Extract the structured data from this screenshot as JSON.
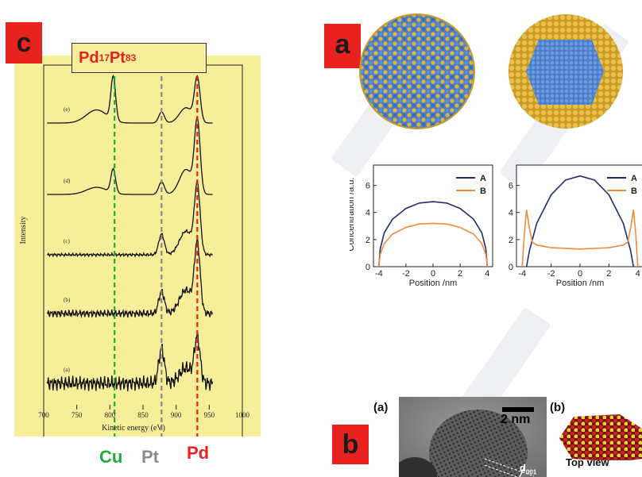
{
  "panel_c": {
    "tag": "c",
    "title": {
      "base1": "Pd",
      "sub1": "17",
      "base2": "Pt",
      "sub2": "83"
    },
    "y_label": "Intensity",
    "x_label": "Kinetic energy (eV)",
    "x_ticks": [
      "700",
      "750",
      "800",
      "850",
      "900",
      "950",
      "1000"
    ],
    "trace_labels": [
      "(e)",
      "(d)",
      "(c)",
      "(b)",
      "(a)"
    ],
    "element_labels": [
      {
        "text": "Cu",
        "color": "#1faa3a"
      },
      {
        "text": "Pt",
        "color": "#8a8a8a"
      },
      {
        "text": "Pd",
        "color": "#e8231f"
      }
    ],
    "line_colors": {
      "cu": "#1faa3a",
      "pt": "#8a8a8a",
      "pd": "#e8231f"
    },
    "background_color": "#f7ee9a"
  },
  "panel_a": {
    "tag": "a",
    "colors": {
      "A": "#1f2d6b",
      "B": "#f08a3c",
      "blue_atoms": "#4c7fc9",
      "gold_atoms": "#e0b23a"
    }
  },
  "panel_b": {
    "tag": "b",
    "sublabel_a": "(a)",
    "sublabel_b": "(b)",
    "scale_bar": "2 nm",
    "d_label": "d",
    "d_sub": "001",
    "caption": "Top view"
  },
  "chart_data": [
    {
      "type": "line",
      "title": "",
      "xlabel": "Position /nm",
      "ylabel": "Concentration /a.u.",
      "xlim": [
        -4.4,
        4.4
      ],
      "ylim": [
        0,
        7.5
      ],
      "x_ticks": [
        -4,
        -2,
        0,
        2,
        4
      ],
      "y_ticks": [
        0,
        2,
        4,
        6
      ],
      "legend_position": "top-right",
      "series": [
        {
          "name": "A",
          "color": "#1f2d6b",
          "x": [
            -4,
            -3.9,
            -3.6,
            -3,
            -2,
            -1,
            0,
            1,
            2,
            3,
            3.6,
            3.9,
            4
          ],
          "values": [
            0,
            1.3,
            2.5,
            3.5,
            4.3,
            4.7,
            4.8,
            4.7,
            4.3,
            3.5,
            2.5,
            1.3,
            0
          ]
        },
        {
          "name": "B",
          "color": "#f08a3c",
          "x": [
            -4,
            -3.9,
            -3.6,
            -3,
            -2,
            -1,
            0,
            1,
            2,
            3,
            3.6,
            3.9,
            4
          ],
          "values": [
            0,
            0.9,
            1.7,
            2.4,
            2.9,
            3.15,
            3.2,
            3.15,
            2.9,
            2.4,
            1.7,
            0.9,
            0
          ]
        }
      ]
    },
    {
      "type": "line",
      "title": "",
      "xlabel": "Position /nm",
      "ylabel": "",
      "xlim": [
        -4.4,
        4.4
      ],
      "ylim": [
        0,
        7.5
      ],
      "x_ticks": [
        -4,
        -2,
        0,
        2,
        4
      ],
      "y_ticks": [
        0,
        2,
        4,
        6
      ],
      "legend_position": "top-right",
      "series": [
        {
          "name": "A",
          "color": "#1f2d6b",
          "x": [
            -3.7,
            -3.5,
            -3,
            -2,
            -1,
            0,
            1,
            2,
            3,
            3.5,
            3.7
          ],
          "values": [
            0,
            1.2,
            3.2,
            5.3,
            6.4,
            6.7,
            6.4,
            5.3,
            3.2,
            1.2,
            0
          ]
        },
        {
          "name": "B",
          "color": "#f08a3c",
          "x": [
            -4,
            -3.85,
            -3.7,
            -3.5,
            -3.3,
            -3,
            -2,
            0,
            2,
            3,
            3.3,
            3.5,
            3.7,
            3.85,
            4
          ],
          "values": [
            0,
            2.5,
            4.2,
            2.8,
            1.8,
            1.6,
            1.4,
            1.3,
            1.4,
            1.6,
            1.8,
            2.8,
            4.2,
            2.5,
            0
          ]
        }
      ]
    }
  ]
}
